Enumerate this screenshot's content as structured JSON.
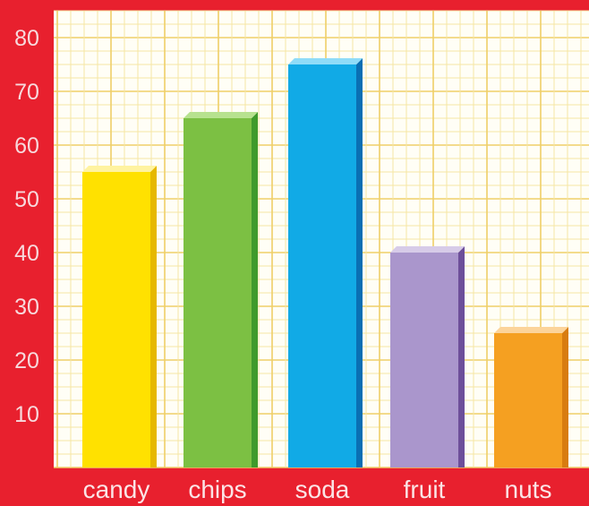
{
  "chart_data": {
    "type": "bar",
    "title": "",
    "xlabel": "",
    "ylabel": "",
    "categories": [
      "candy",
      "chips",
      "soda",
      "fruit",
      "nuts"
    ],
    "values": [
      55,
      65,
      75,
      40,
      25
    ],
    "y_ticks": [
      10,
      20,
      30,
      40,
      50,
      60,
      70,
      80
    ],
    "ylim": [
      0,
      85
    ],
    "grid": true,
    "legend": "none",
    "colors": {
      "background": "#e8202e",
      "plot_area": "#fffef6",
      "grid_minor": "#f6e6a4",
      "grid_major": "#efcf68",
      "bars": [
        "#ffe100",
        "#7cc043",
        "#11aae6",
        "#aa96cc",
        "#f5a021"
      ],
      "bar_sides": [
        "#e6b800",
        "#3f9a2b",
        "#0a6fb3",
        "#6d4f9a",
        "#d87c10"
      ],
      "bar_tops": [
        "#fff3a0",
        "#b7e28f",
        "#8fdcf8",
        "#d7cbe8",
        "#fcd49a"
      ]
    }
  }
}
